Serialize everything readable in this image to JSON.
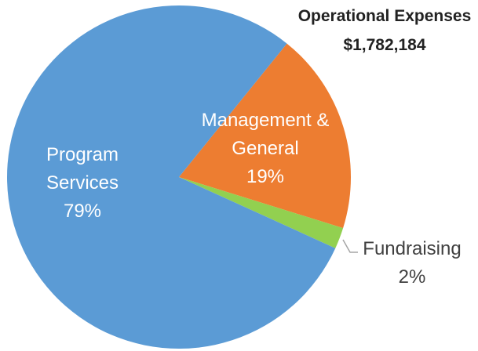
{
  "chart_data": {
    "type": "pie",
    "title": "Operational Expenses",
    "subtitle": "$1,782,184",
    "categories": [
      "Management & General",
      "Fundraising",
      "Program Services"
    ],
    "values": [
      19,
      2,
      79
    ],
    "value_labels": [
      "19%",
      "2%",
      "79%"
    ],
    "colors": [
      "#ed7d31",
      "#92d050",
      "#5b9bd5"
    ]
  }
}
